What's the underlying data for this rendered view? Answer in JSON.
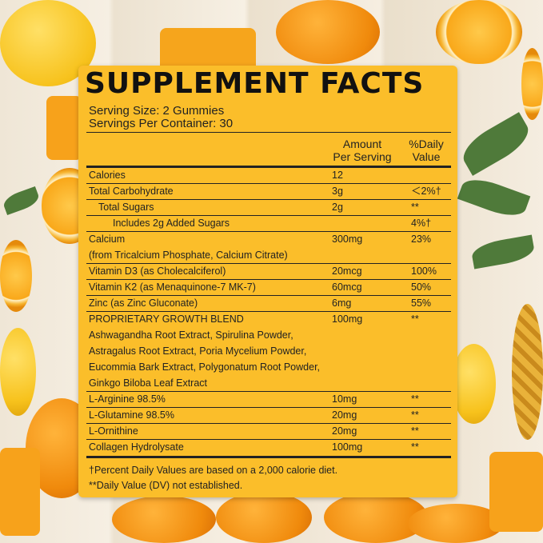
{
  "title": "SUPPLEMENT FACTS",
  "serving_size": "Serving Size: 2 Gummies",
  "servings_per_container": "Servings Per Container: 30",
  "headers": {
    "amount_1": "Amount",
    "amount_2": "Per Serving",
    "dv_1": "%Daily",
    "dv_2": "Value"
  },
  "rows": [
    {
      "label": "Calories",
      "amount": "12",
      "dv": ""
    },
    {
      "label": "Total Carbohydrate",
      "amount": "3g",
      "dv": "＜2%†"
    },
    {
      "label": "Total Sugars",
      "amount": "2g",
      "dv": "**"
    },
    {
      "label": "Includes 2g Added Sugars",
      "amount": "",
      "dv": "4%†"
    },
    {
      "label": "Calcium",
      "sub": "(from Tricalcium Phosphate, Calcium Citrate)",
      "amount": "300mg",
      "dv": "23%"
    },
    {
      "label": "Vitamin D3 (as Cholecalciferol)",
      "amount": "20mcg",
      "dv": "100%"
    },
    {
      "label": "Vitamin K2 (as Menaquinone-7 MK-7)",
      "amount": "60mcg",
      "dv": "50%"
    },
    {
      "label": "Zinc (as Zinc Gluconate)",
      "amount": "6mg",
      "dv": "55%"
    },
    {
      "label": "PROPRIETARY GROWTH BLEND",
      "amount": "100mg",
      "dv": "**",
      "lines": [
        "Ashwagandha Root Extract, Spirulina Powder,",
        "Astragalus Root Extract, Poria Mycelium Powder,",
        "Eucommia Bark Extract, Polygonatum Root Powder,",
        "Ginkgo Biloba Leaf Extract"
      ]
    },
    {
      "label": "L-Arginine 98.5%",
      "amount": "10mg",
      "dv": "**"
    },
    {
      "label": "L-Glutamine 98.5%",
      "amount": "20mg",
      "dv": "**"
    },
    {
      "label": "L-Ornithine",
      "amount": "20mg",
      "dv": "**"
    },
    {
      "label": "Collagen Hydrolysate",
      "amount": "100mg",
      "dv": "**"
    }
  ],
  "footnotes": [
    "†Percent Daily Values are based on a 2,000 calorie diet.",
    "**Daily Value (DV) not established."
  ],
  "colors": {
    "panel": "#fbbe2a",
    "text": "#222222"
  }
}
